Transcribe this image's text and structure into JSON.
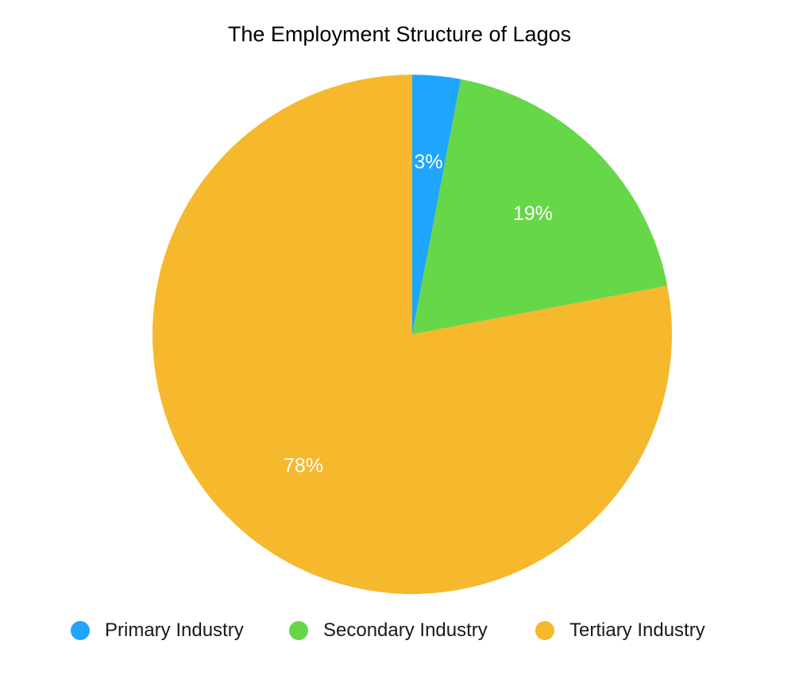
{
  "chart_data": {
    "type": "pie",
    "title": "The Employment Structure of Lagos",
    "categories": [
      "Primary Industry",
      "Secondary Industry",
      "Tertiary Industry"
    ],
    "values": [
      3,
      19,
      78
    ],
    "labels": [
      "3%",
      "19%",
      "78%"
    ],
    "colors": [
      "#20A5FD",
      "#66D748",
      "#F6B82D"
    ],
    "legend_position": "bottom"
  }
}
